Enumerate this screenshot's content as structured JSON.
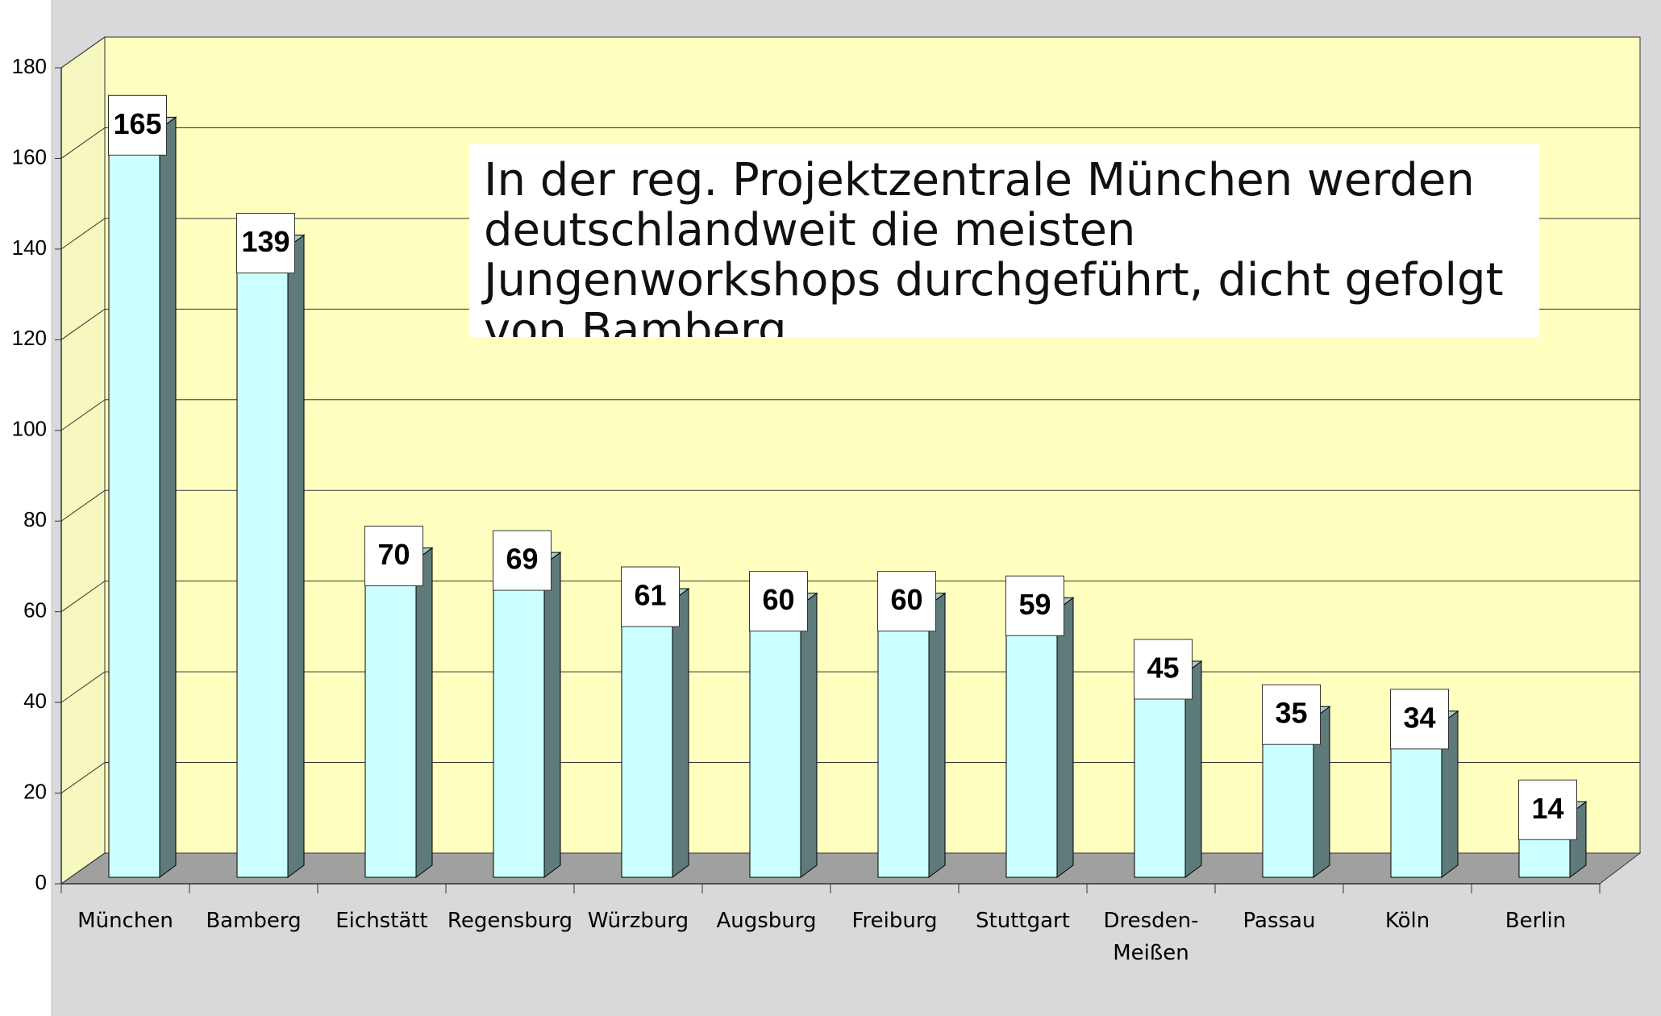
{
  "chart_data": {
    "type": "bar3d",
    "annotation": "In der reg. Projektzentrale München werden deutschlandweit die meisten Jungenworkshops durchgeführt, dicht gefolgt von Bamberg",
    "categories": [
      "München",
      "Bamberg",
      "Eichstätt",
      "Regensburg",
      "Würzburg",
      "Augsburg",
      "Freiburg",
      "Stuttgart",
      "Dresden-Meißen",
      "Passau",
      "Köln",
      "Berlin"
    ],
    "values": [
      165,
      139,
      70,
      69,
      61,
      60,
      60,
      59,
      45,
      35,
      34,
      14
    ],
    "color": "#ccffff",
    "ylim": [
      0,
      180
    ],
    "yticks": [
      0,
      20,
      40,
      60,
      80,
      100,
      120,
      140,
      160,
      180
    ],
    "grid": true
  }
}
